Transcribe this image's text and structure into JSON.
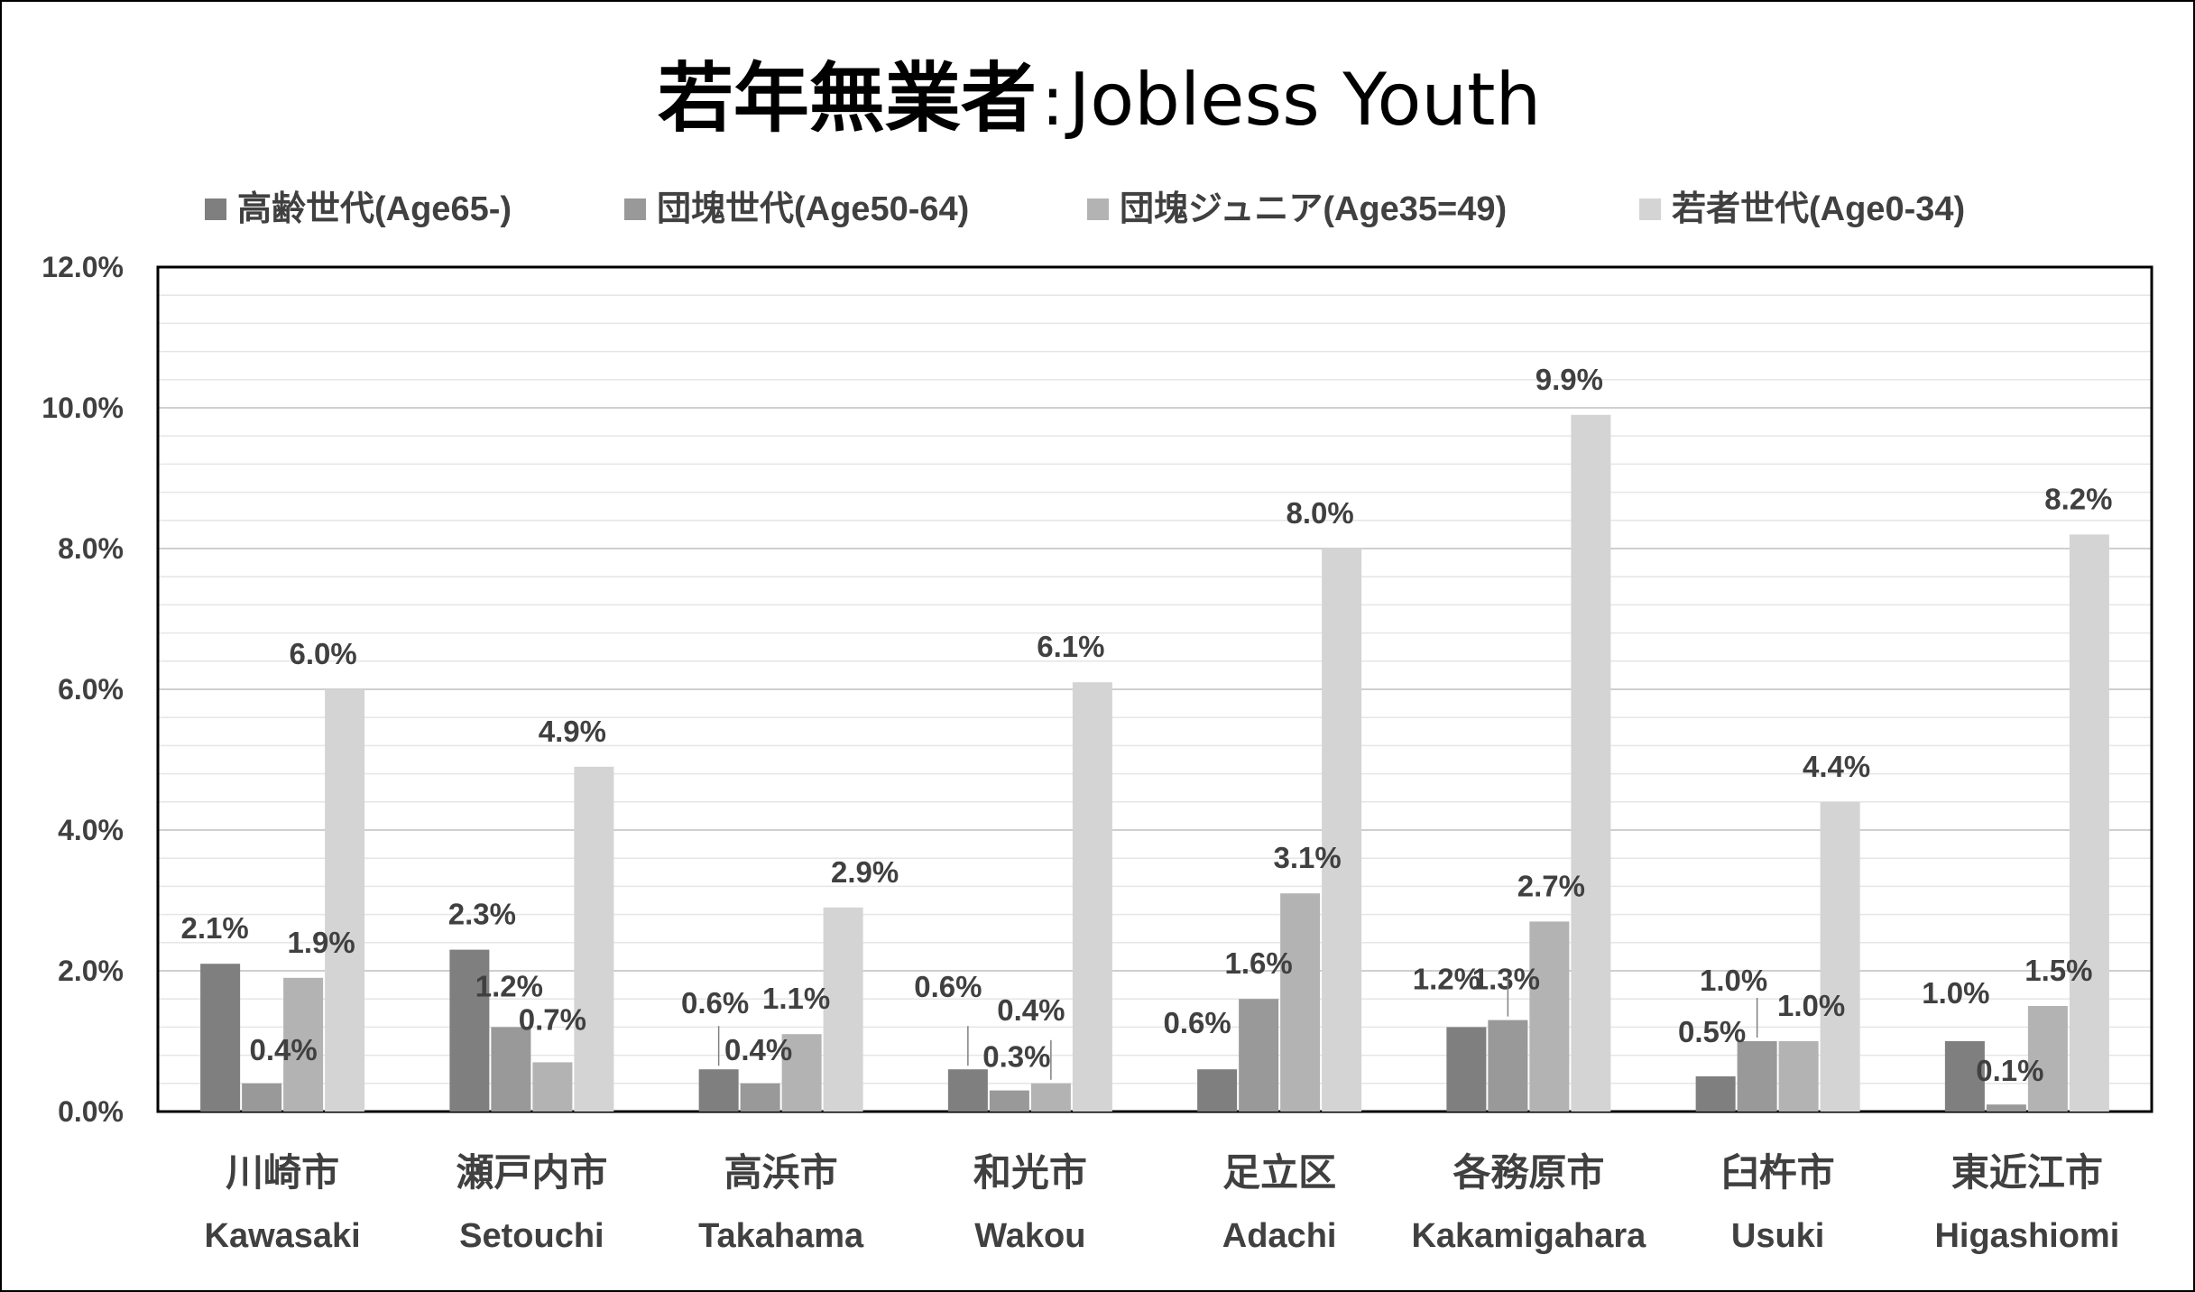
{
  "chart_data": {
    "type": "bar",
    "title": "若年無業者",
    "title_separator": ":",
    "subtitle": "Jobless Youth",
    "categories": [
      {
        "ja": "川崎市",
        "en": "Kawasaki"
      },
      {
        "ja": "瀬戸内市",
        "en": "Setouchi"
      },
      {
        "ja": "高浜市",
        "en": "Takahama"
      },
      {
        "ja": "和光市",
        "en": "Wakou"
      },
      {
        "ja": "足立区",
        "en": "Adachi"
      },
      {
        "ja": "各務原市",
        "en": "Kakamigahara"
      },
      {
        "ja": "臼杵市",
        "en": "Usuki"
      },
      {
        "ja": "東近江市",
        "en": "Higashiomi"
      }
    ],
    "series": [
      {
        "name": "高齢世代(Age65-)",
        "color": "#7f7f7f",
        "values": [
          2.1,
          2.3,
          0.6,
          0.6,
          0.6,
          1.2,
          0.5,
          1.0
        ],
        "labels": [
          "2.1%",
          "2.3%",
          "0.6%",
          "0.6%",
          "0.6%",
          "1.2%",
          "0.5%",
          "1.0%"
        ]
      },
      {
        "name": "団塊世代(Age50-64)",
        "color": "#999999",
        "values": [
          0.4,
          1.2,
          0.4,
          0.3,
          1.6,
          1.3,
          1.0,
          0.1
        ],
        "labels": [
          "0.4%",
          "1.2%",
          "0.4%",
          "0.3%",
          "1.6%",
          "1.3%",
          "1.0%",
          "0.1%"
        ]
      },
      {
        "name": "団塊ジュニア(Age35=49)",
        "color": "#b3b3b3",
        "values": [
          1.9,
          0.7,
          1.1,
          0.4,
          3.1,
          2.7,
          1.0,
          1.5
        ],
        "labels": [
          "1.9%",
          "0.7%",
          "1.1%",
          "0.4%",
          "3.1%",
          "2.7%",
          "1.0%",
          "1.5%"
        ]
      },
      {
        "name": "若者世代(Age0-34)",
        "color": "#d4d4d4",
        "values": [
          6.0,
          4.9,
          2.9,
          6.1,
          8.0,
          9.9,
          4.4,
          8.2
        ],
        "labels": [
          "6.0%",
          "4.9%",
          "2.9%",
          "6.1%",
          "8.0%",
          "9.9%",
          "4.4%",
          "8.2%"
        ]
      }
    ],
    "yticks": [
      "0.0%",
      "2.0%",
      "4.0%",
      "6.0%",
      "8.0%",
      "10.0%",
      "12.0%"
    ],
    "ylim": [
      0,
      12
    ],
    "grid": true,
    "legend_position": "top"
  }
}
